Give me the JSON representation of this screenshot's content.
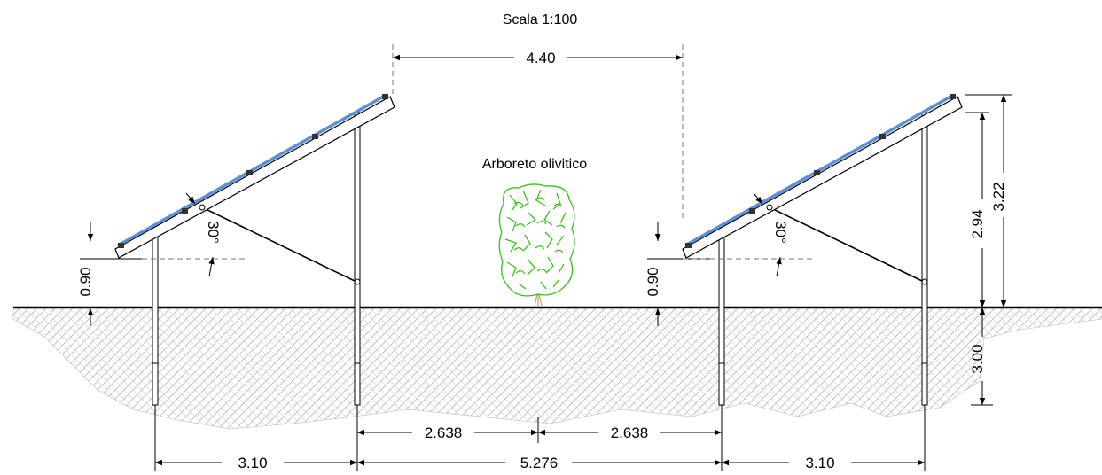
{
  "title": {
    "scale": "Scala 1:100"
  },
  "tree": {
    "label": "Arboreto olivitico"
  },
  "dimensions": {
    "row_gap_top": "4.40",
    "left_tilt_angle": "30°",
    "right_tilt_angle": "30°",
    "left_clearance": "0.90",
    "center_clearance": "0.90",
    "height_post": "2.94",
    "height_total": "3.22",
    "embed_depth": "3.00",
    "half_gap_left": "2.638",
    "half_gap_right": "2.638",
    "left_span": "3.10",
    "center_span": "5.276",
    "right_span": "3.10"
  },
  "colors": {
    "panel": "#5b8fd6",
    "tree": "#39c21c",
    "soil_hatch": "#b8b8b8"
  }
}
